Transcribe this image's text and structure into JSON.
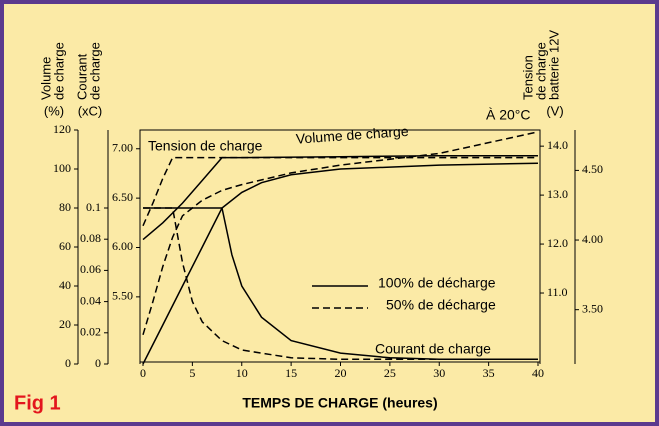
{
  "chart_data": {
    "type": "line",
    "xlabel": "TEMPS DE CHARGE (heures)",
    "figure_label": "Fig 1",
    "xlim": [
      0,
      40
    ],
    "xticks": [
      0,
      5,
      10,
      15,
      20,
      25,
      30,
      35,
      40
    ],
    "axes": [
      {
        "title": [
          "Volume",
          "de charge"
        ],
        "unit": "(%)",
        "lim": [
          0,
          120
        ],
        "ticks": [
          0,
          20,
          40,
          60,
          80,
          100,
          120
        ]
      },
      {
        "title": [
          "Courant",
          "de charge"
        ],
        "unit": "(xC)",
        "lim": [
          0,
          0.15
        ],
        "ticks": [
          0,
          0.02,
          0.04,
          0.06,
          0.08,
          0.1
        ]
      },
      {
        "lim": [
          4.82,
          7.19
        ],
        "ticks": [
          {
            "value": 5.5,
            "label": "5.50"
          },
          {
            "value": 6,
            "label": "6.00"
          },
          {
            "value": 6.5,
            "label": "6.50"
          },
          {
            "value": 7,
            "label": "7.00"
          }
        ]
      },
      {
        "title": [
          "Tension",
          "de charge",
          "batterie 12V"
        ],
        "unit": "(V)",
        "lim": [
          9.55,
          14.33
        ],
        "ticks": [
          {
            "value": 11,
            "label": "11.0"
          },
          {
            "value": 12,
            "label": "12.0"
          },
          {
            "value": 13,
            "label": "13.0"
          },
          {
            "value": 14,
            "label": "14.0"
          }
        ]
      },
      {
        "lim": [
          3.11,
          4.79
        ],
        "ticks": [
          {
            "value": 3.5,
            "label": "3.50"
          },
          {
            "value": 4,
            "label": "4.00"
          },
          {
            "value": 4.5,
            "label": "4.50"
          }
        ]
      }
    ],
    "legend": [
      {
        "label": "100% de décharge",
        "style": "solid"
      },
      {
        "label": "50% de décharge",
        "style": "dashed"
      }
    ],
    "annotations": [
      "Tension de charge",
      "Volume de charge",
      "Courant de charge",
      "À 20°C"
    ],
    "series": [
      {
        "style": "solid",
        "axis": 2,
        "color": "#000000",
        "x": [
          0,
          2,
          4,
          6,
          8,
          10,
          20,
          30,
          40
        ],
        "values": [
          6.08,
          6.25,
          6.45,
          6.68,
          6.91,
          6.91,
          6.92,
          6.93,
          6.93
        ]
      },
      {
        "style": "dashed",
        "axis": 2,
        "color": "#000000",
        "x": [
          0,
          1,
          2,
          3,
          4,
          10,
          20,
          30,
          40
        ],
        "values": [
          6.22,
          6.45,
          6.7,
          6.91,
          6.91,
          6.91,
          6.91,
          6.91,
          6.91
        ]
      },
      {
        "style": "solid",
        "axis": 0,
        "color": "#000000",
        "x": [
          0,
          2,
          4,
          6,
          8,
          10,
          12,
          15,
          20,
          25,
          30,
          40
        ],
        "values": [
          0,
          20,
          40,
          60,
          80,
          88,
          93,
          97,
          100,
          101,
          102,
          103
        ]
      },
      {
        "style": "dashed",
        "axis": 0,
        "color": "#000000",
        "x": [
          0,
          1,
          2,
          3,
          4,
          6,
          8,
          10,
          15,
          20,
          30,
          40
        ],
        "values": [
          15,
          32,
          50,
          65,
          76,
          84,
          89,
          92,
          98,
          102,
          108,
          119
        ]
      },
      {
        "style": "solid",
        "axis": 1,
        "color": "#000000",
        "x": [
          0,
          8,
          9,
          10,
          12,
          15,
          20,
          25,
          30,
          40
        ],
        "values": [
          0.1,
          0.1,
          0.07,
          0.05,
          0.03,
          0.015,
          0.007,
          0.004,
          0.003,
          0.003
        ]
      },
      {
        "style": "dashed",
        "axis": 1,
        "color": "#000000",
        "x": [
          0,
          3,
          4,
          5,
          6,
          8,
          10,
          15,
          20,
          30,
          40
        ],
        "values": [
          0.1,
          0.1,
          0.065,
          0.04,
          0.027,
          0.015,
          0.009,
          0.004,
          0.003,
          0.003,
          0.003
        ]
      }
    ]
  }
}
